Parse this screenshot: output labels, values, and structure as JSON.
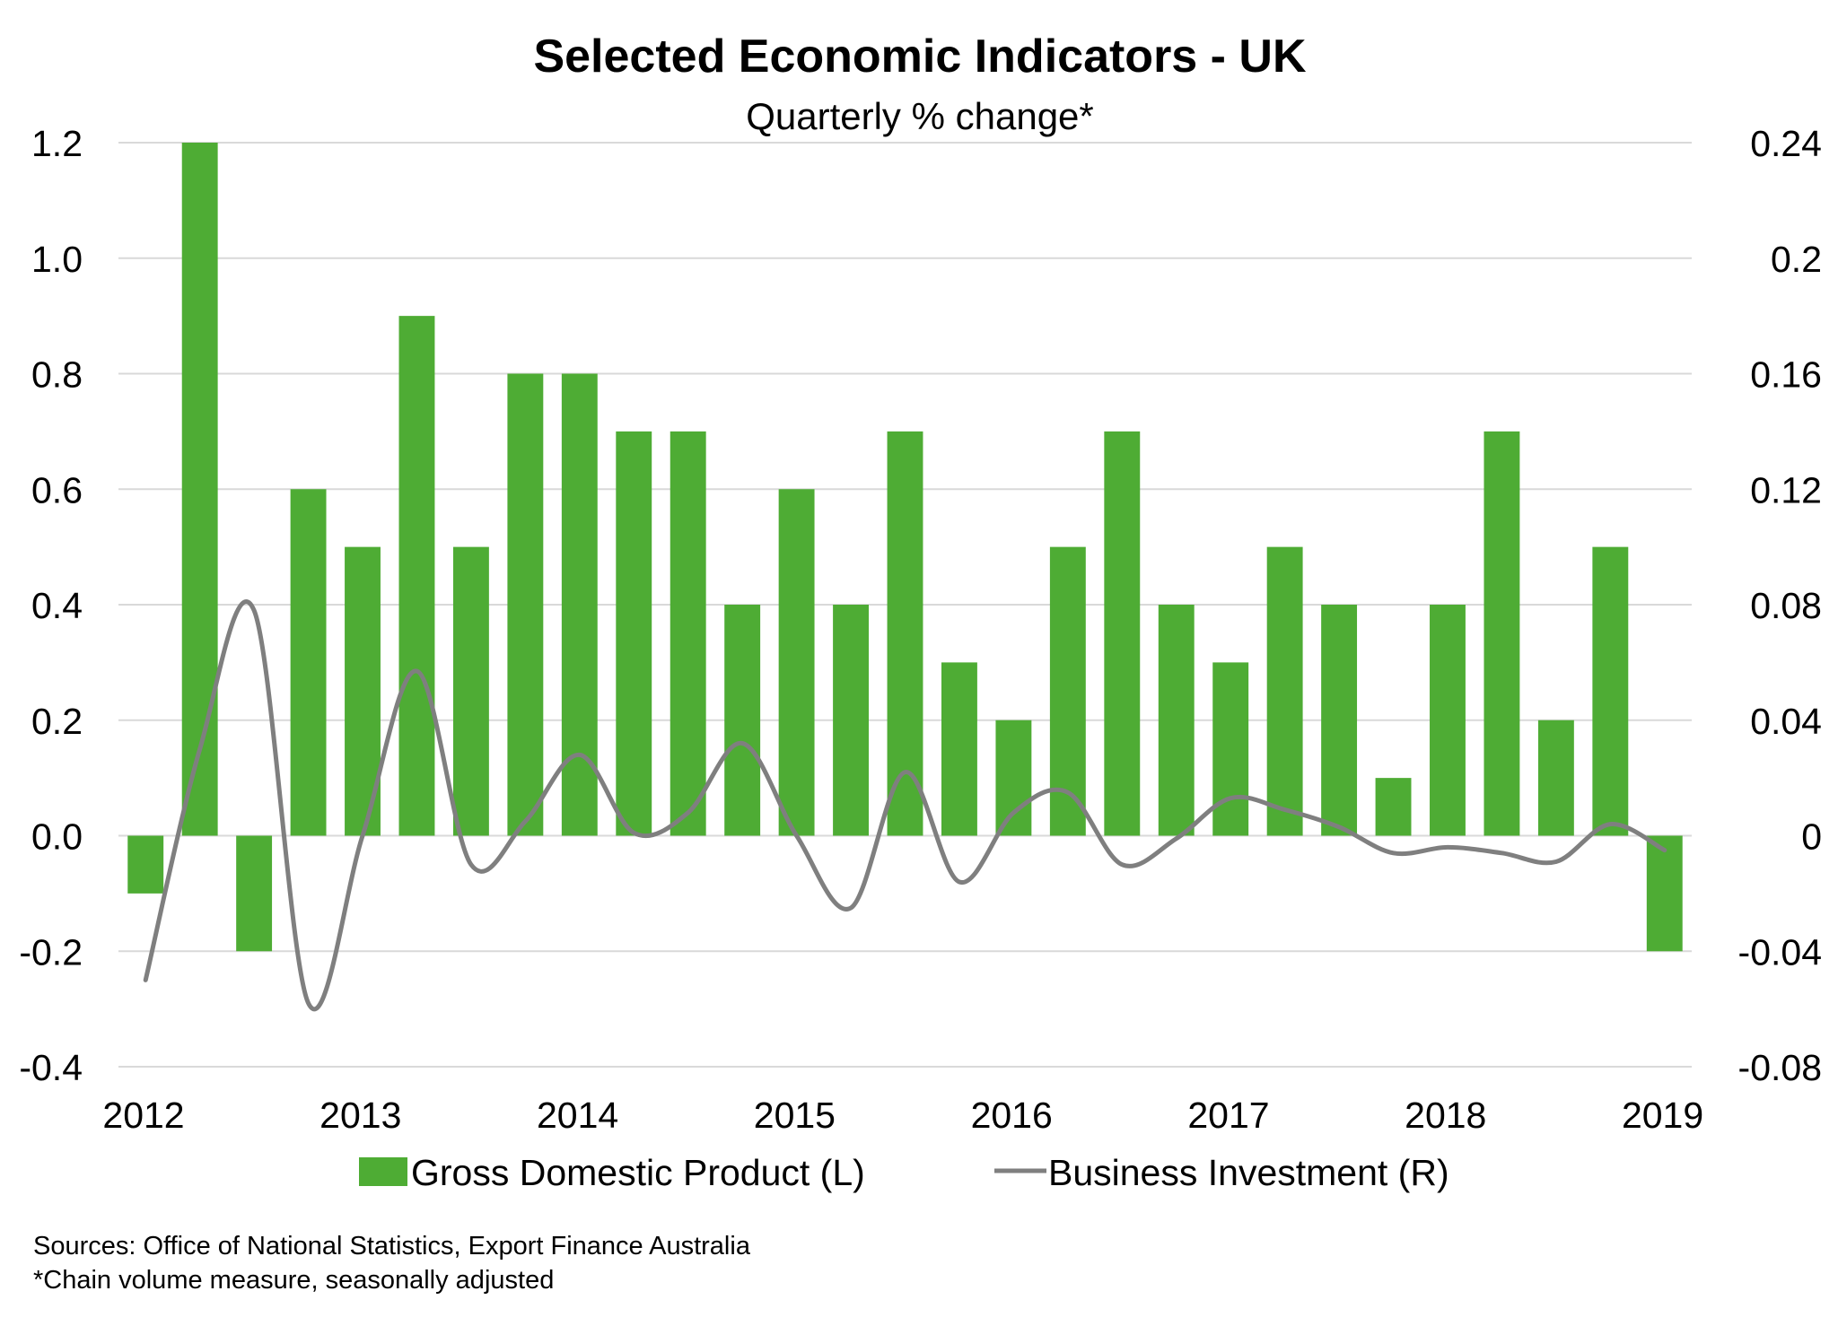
{
  "chart_data": {
    "type": "bar",
    "title": "Selected Economic Indicators - UK",
    "subtitle": "Quarterly % change*",
    "x_ticks": [
      "2012",
      "2013",
      "2014",
      "2015",
      "2016",
      "2017",
      "2018",
      "2019"
    ],
    "left_axis": {
      "ylim": [
        -0.4,
        1.2
      ],
      "ticks": [
        "-0.4",
        "-0.2",
        "0.0",
        "0.2",
        "0.4",
        "0.6",
        "0.8",
        "1.0",
        "1.2"
      ],
      "tick_values": [
        -0.4,
        -0.2,
        0.0,
        0.2,
        0.4,
        0.6,
        0.8,
        1.0,
        1.2
      ]
    },
    "right_axis": {
      "ylim": [
        -0.08,
        0.24
      ],
      "ticks": [
        "-0.08",
        "-0.04",
        "0",
        "0.04",
        "0.08",
        "0.12",
        "0.16",
        "0.2",
        "0.24"
      ],
      "tick_values": [
        -0.08,
        -0.04,
        0.0,
        0.04,
        0.08,
        0.12,
        0.16,
        0.2,
        0.24
      ]
    },
    "quarters": [
      "2012 Q1",
      "2012 Q2",
      "2012 Q3",
      "2012 Q4",
      "2013 Q1",
      "2013 Q2",
      "2013 Q3",
      "2013 Q4",
      "2014 Q1",
      "2014 Q2",
      "2014 Q3",
      "2014 Q4",
      "2015 Q1",
      "2015 Q2",
      "2015 Q3",
      "2015 Q4",
      "2016 Q1",
      "2016 Q2",
      "2016 Q3",
      "2016 Q4",
      "2017 Q1",
      "2017 Q2",
      "2017 Q3",
      "2017 Q4",
      "2018 Q1",
      "2018 Q2",
      "2018 Q3",
      "2018 Q4",
      "2019 Q1"
    ],
    "series": [
      {
        "name": "Gross Domestic Product (L)",
        "kind": "bar",
        "axis": "left",
        "color": "#4eac34",
        "values": [
          -0.1,
          1.2,
          -0.2,
          0.6,
          0.5,
          0.9,
          0.5,
          0.8,
          0.8,
          0.7,
          0.7,
          0.4,
          0.6,
          0.4,
          0.7,
          0.3,
          0.2,
          0.5,
          0.7,
          0.4,
          0.3,
          0.5,
          0.4,
          0.1,
          0.4,
          0.7,
          0.2,
          0.5,
          -0.2
        ]
      },
      {
        "name": "Business Investment (R)",
        "kind": "line",
        "axis": "right",
        "color": "#7f7f7f",
        "values": [
          -0.05,
          0.03,
          0.078,
          -0.058,
          0.0,
          0.057,
          -0.01,
          0.005,
          0.028,
          0.001,
          0.008,
          0.032,
          0.0,
          -0.025,
          0.022,
          -0.016,
          0.008,
          0.015,
          -0.01,
          -0.001,
          0.013,
          0.009,
          0.003,
          -0.006,
          -0.004,
          -0.006,
          -0.009,
          0.004,
          -0.005
        ]
      }
    ],
    "legend_position": "bottom",
    "grid": true
  },
  "notes": {
    "sources": "Sources: Office of National Statistics, Export Finance Australia",
    "footnote": "*Chain volume measure, seasonally adjusted"
  }
}
